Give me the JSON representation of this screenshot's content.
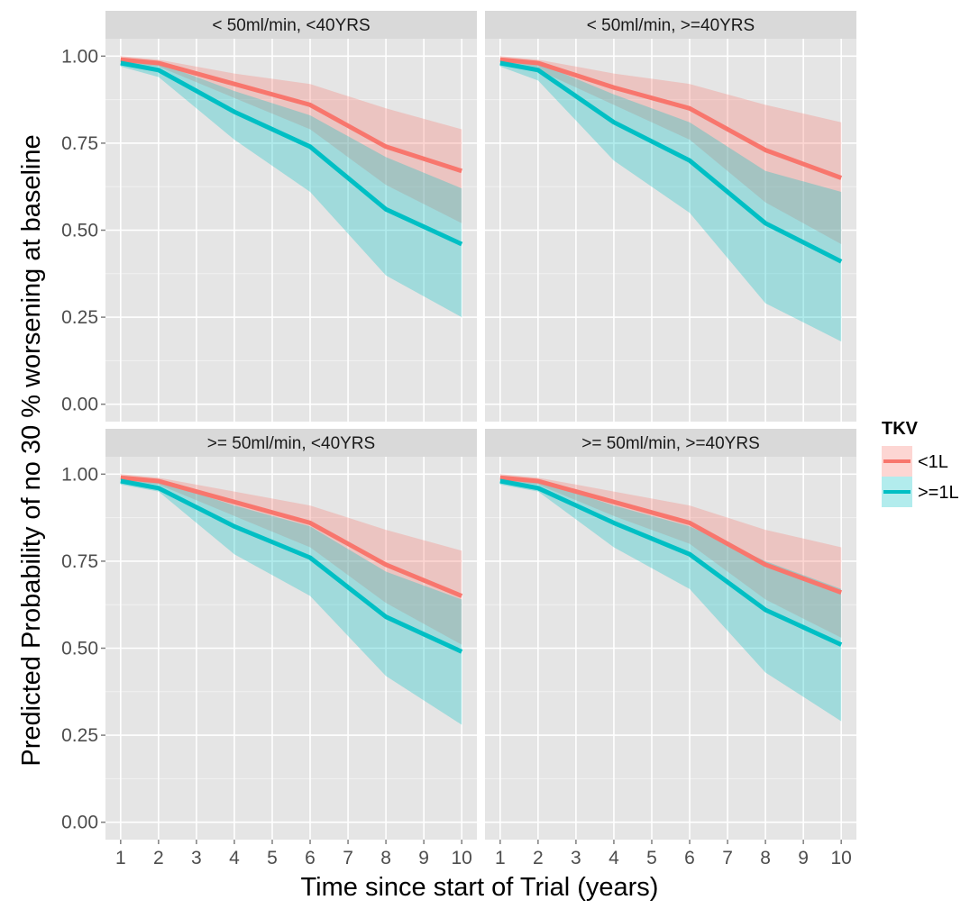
{
  "chart_data": {
    "type": "line",
    "xlabel": "Time since start of Trial (years)",
    "ylabel": "Predicted Probability of no 30 % worsening at baseline",
    "xlim": [
      0.6,
      10.4
    ],
    "ylim": [
      -0.05,
      1.05
    ],
    "x_ticks": [
      1,
      2,
      3,
      4,
      5,
      6,
      7,
      8,
      9,
      10
    ],
    "y_ticks": [
      0.0,
      0.25,
      0.5,
      0.75,
      1.0
    ],
    "y_tick_labels": [
      "0.00",
      "0.25",
      "0.50",
      "0.75",
      "1.00"
    ],
    "x": [
      1,
      2,
      4,
      6,
      8,
      10
    ],
    "grid": true,
    "legend": {
      "title": "TKV",
      "placement": "right",
      "entries": [
        {
          "label": "<1L",
          "color": "#F8766D"
        },
        {
          "label": ">=1L",
          "color": "#00BFC4"
        }
      ]
    },
    "panels": [
      {
        "label": "< 50ml/min, <40YRS",
        "series": [
          {
            "name": "<1L",
            "color": "#F8766D",
            "values": [
              0.99,
              0.98,
              0.92,
              0.86,
              0.74,
              0.67
            ],
            "lower": [
              0.98,
              0.97,
              0.88,
              0.79,
              0.63,
              0.52
            ],
            "upper": [
              1.0,
              0.99,
              0.95,
              0.92,
              0.85,
              0.79
            ]
          },
          {
            "name": ">=1L",
            "color": "#00BFC4",
            "values": [
              0.98,
              0.96,
              0.84,
              0.74,
              0.56,
              0.46
            ],
            "lower": [
              0.97,
              0.94,
              0.76,
              0.61,
              0.37,
              0.25
            ],
            "upper": [
              0.99,
              0.98,
              0.9,
              0.83,
              0.71,
              0.62
            ]
          }
        ]
      },
      {
        "label": "< 50ml/min, >=40YRS",
        "series": [
          {
            "name": "<1L",
            "color": "#F8766D",
            "values": [
              0.99,
              0.98,
              0.91,
              0.85,
              0.73,
              0.65
            ],
            "lower": [
              0.98,
              0.96,
              0.86,
              0.76,
              0.58,
              0.46
            ],
            "upper": [
              1.0,
              0.99,
              0.95,
              0.92,
              0.86,
              0.81
            ]
          },
          {
            "name": ">=1L",
            "color": "#00BFC4",
            "values": [
              0.98,
              0.96,
              0.81,
              0.7,
              0.52,
              0.41
            ],
            "lower": [
              0.97,
              0.93,
              0.7,
              0.55,
              0.29,
              0.18
            ],
            "upper": [
              0.99,
              0.98,
              0.89,
              0.81,
              0.67,
              0.61
            ]
          }
        ]
      },
      {
        "label": ">= 50ml/min, <40YRS",
        "series": [
          {
            "name": "<1L",
            "color": "#F8766D",
            "values": [
              0.99,
              0.98,
              0.92,
              0.86,
              0.74,
              0.65
            ],
            "lower": [
              0.98,
              0.97,
              0.88,
              0.79,
              0.63,
              0.51
            ],
            "upper": [
              1.0,
              0.99,
              0.95,
              0.91,
              0.84,
              0.78
            ]
          },
          {
            "name": ">=1L",
            "color": "#00BFC4",
            "values": [
              0.98,
              0.96,
              0.85,
              0.76,
              0.59,
              0.49
            ],
            "lower": [
              0.97,
              0.95,
              0.77,
              0.65,
              0.42,
              0.28
            ],
            "upper": [
              0.99,
              0.98,
              0.91,
              0.85,
              0.72,
              0.64
            ]
          }
        ]
      },
      {
        "label": ">= 50ml/min, >=40YRS",
        "series": [
          {
            "name": "<1L",
            "color": "#F8766D",
            "values": [
              0.99,
              0.98,
              0.92,
              0.86,
              0.74,
              0.66
            ],
            "lower": [
              0.98,
              0.97,
              0.88,
              0.8,
              0.64,
              0.53
            ],
            "upper": [
              1.0,
              0.99,
              0.95,
              0.91,
              0.84,
              0.79
            ]
          },
          {
            "name": ">=1L",
            "color": "#00BFC4",
            "values": [
              0.98,
              0.96,
              0.86,
              0.77,
              0.61,
              0.51
            ],
            "lower": [
              0.97,
              0.95,
              0.79,
              0.67,
              0.43,
              0.29
            ],
            "upper": [
              0.99,
              0.98,
              0.91,
              0.85,
              0.75,
              0.67
            ]
          }
        ]
      }
    ]
  }
}
